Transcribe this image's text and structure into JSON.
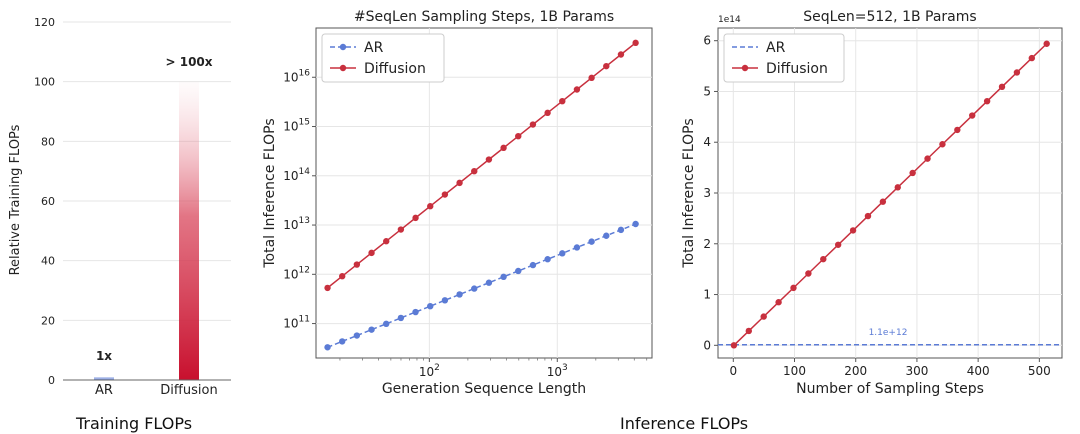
{
  "footer": {
    "training_caption": "Training FLOPs",
    "inference_caption": "Inference FLOPs"
  },
  "colors": {
    "ar": "#5B7BD5",
    "diffusion": "#C8303E",
    "grid": "#e6e6e6"
  },
  "chart_data": [
    {
      "type": "bar",
      "title": "",
      "xlabel": "",
      "ylabel": "Relative Training FLOPs",
      "categories": [
        "AR",
        "Diffusion"
      ],
      "values": [
        1,
        100
      ],
      "value_labels": [
        "1x",
        "> 100x"
      ],
      "ylim": [
        0,
        120
      ],
      "yticks": [
        0,
        20,
        40,
        60,
        80,
        100,
        120
      ],
      "grid": true
    },
    {
      "type": "line",
      "title": "#SeqLen Sampling Steps, 1B Params",
      "xlabel": "Generation Sequence Length",
      "ylabel": "Total Inference FLOPs",
      "xscale": "log",
      "yscale": "log",
      "xlim": [
        13,
        5500
      ],
      "ylim": [
        20000000000.0,
        1e+17
      ],
      "xtick_labels": [
        "10^2",
        "10^3"
      ],
      "ytick_labels": [
        "10^11",
        "10^12",
        "10^13",
        "10^14",
        "10^15",
        "10^16"
      ],
      "legend": "top-left",
      "series": [
        {
          "name": "AR",
          "style": "dashed",
          "x_start": 16,
          "x_end": 4096,
          "y_start": 33000000000.0,
          "y_end": 10500000000000.0,
          "points": 22
        },
        {
          "name": "Diffusion",
          "style": "solid",
          "x_start": 16,
          "x_end": 4096,
          "y_start": 530000000000.0,
          "y_end": 5e+16,
          "points": 22
        }
      ]
    },
    {
      "type": "line",
      "title": "SeqLen=512, 1B Params",
      "xlabel": "Number of Sampling Steps",
      "ylabel": "Total Inference FLOPs",
      "y_multiplier": "1e14",
      "xlim": [
        -25,
        537
      ],
      "ylim": [
        -0.25,
        6.25
      ],
      "xticks": [
        0,
        100,
        200,
        300,
        400,
        500
      ],
      "yticks": [
        0,
        1,
        2,
        3,
        4,
        5,
        6
      ],
      "legend": "top-left",
      "annotation": "1.1e+12",
      "series": [
        {
          "name": "AR",
          "style": "dashed",
          "x_start": 0,
          "x_end": 537,
          "y_start": 0.011,
          "y_end": 0.011
        },
        {
          "name": "Diffusion",
          "style": "solid",
          "x_start": 1,
          "x_end": 512,
          "y_start": 0.0,
          "y_end": 5.94,
          "points": 22
        }
      ]
    }
  ]
}
